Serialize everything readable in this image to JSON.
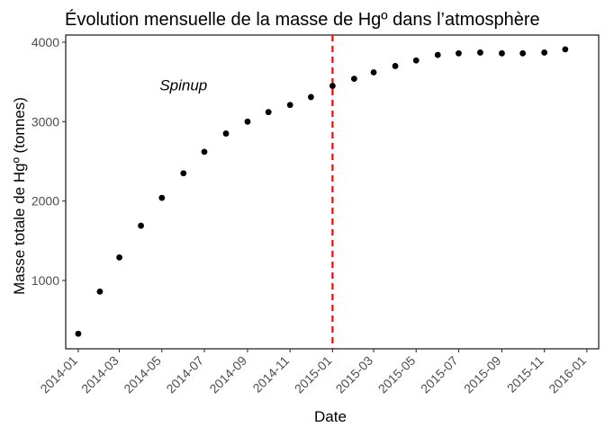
{
  "chart_data": {
    "type": "scatter",
    "title": "Évolution mensuelle de la masse de Hgº dans l’atmosphère",
    "xlabel": "Date",
    "ylabel": "Masse totale de Hgº (tonnes)",
    "x_axis_type": "date",
    "xlim": [
      "2013-12-14",
      "2016-01-18"
    ],
    "ylim": [
      140,
      4090
    ],
    "x_ticks": [
      "2014-01",
      "2014-03",
      "2014-05",
      "2014-07",
      "2014-09",
      "2014-11",
      "2015-01",
      "2015-03",
      "2015-05",
      "2015-07",
      "2015-09",
      "2015-11",
      "2016-01"
    ],
    "y_ticks": [
      1000,
      2000,
      3000,
      4000
    ],
    "grid": false,
    "series": [
      {
        "color": "#000000",
        "x": [
          "2014-01-01",
          "2014-02-01",
          "2014-03-01",
          "2014-04-01",
          "2014-05-01",
          "2014-06-01",
          "2014-07-01",
          "2014-08-01",
          "2014-09-01",
          "2014-10-01",
          "2014-11-01",
          "2014-12-01",
          "2015-01-01",
          "2015-02-01",
          "2015-03-01",
          "2015-04-01",
          "2015-05-01",
          "2015-06-01",
          "2015-07-01",
          "2015-08-01",
          "2015-09-01",
          "2015-10-01",
          "2015-11-01",
          "2015-12-01"
        ],
        "y": [
          330,
          860,
          1290,
          1690,
          2040,
          2350,
          2620,
          2850,
          3000,
          3120,
          3210,
          3310,
          3450,
          3540,
          3620,
          3700,
          3770,
          3840,
          3860,
          3870,
          3860,
          3860,
          3870,
          3910
        ]
      }
    ],
    "reference_line": {
      "x": "2015-01-01",
      "color": "#FF0000",
      "style": "dashed"
    },
    "annotations": [
      {
        "text": "Spinup",
        "x": "2014-06-01",
        "y": 3460
      }
    ]
  }
}
